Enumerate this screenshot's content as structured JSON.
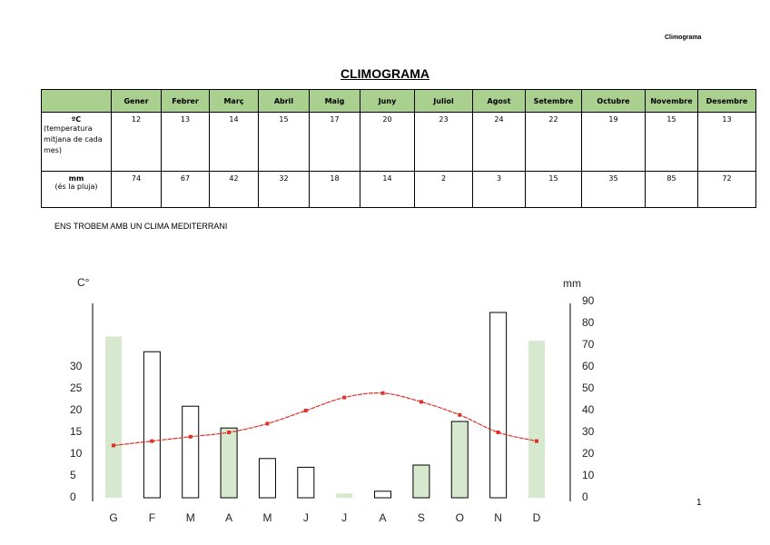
{
  "header": {
    "label": "Climograma"
  },
  "title": "CLIMOGRAMA",
  "table": {
    "columns": [
      "Gener",
      "Febrer",
      "Març",
      "Abril",
      "Maig",
      "Juny",
      "Juliol",
      "Agost",
      "Setembre",
      "Octubre",
      "Novembre",
      "Desembre"
    ],
    "rows": [
      {
        "label": "ºC",
        "sublabel": "(temperatura mitjana de cada mes)",
        "values": [
          12,
          13,
          14,
          15,
          17,
          20,
          23,
          24,
          22,
          19,
          15,
          13
        ]
      },
      {
        "label": "mm",
        "sublabel": "(és la pluja)",
        "values": [
          74,
          67,
          42,
          32,
          18,
          14,
          2,
          3,
          15,
          35,
          85,
          72
        ]
      }
    ]
  },
  "note": "ENS TROBEM AMB UN CLIMA MEDITERRANI",
  "page_number": "1",
  "chart_data": {
    "type": "climograph",
    "y_label": "C°",
    "y2_label": "mm",
    "categories": [
      "G",
      "F",
      "M",
      "A",
      "M",
      "J",
      "J",
      "A",
      "S",
      "O",
      "N",
      "D"
    ],
    "series": [
      {
        "type": "bar",
        "axis": "y2",
        "values": [
          74,
          67,
          42,
          32,
          18,
          14,
          2,
          3,
          15,
          35,
          85,
          72
        ],
        "colors": [
          "#d6e9cf",
          "#ffffff",
          "#ffffff",
          "#d6e9cf",
          "#ffffff",
          "#ffffff",
          "#d6e9cf",
          "#ffffff",
          "#d6e9cf",
          "#d6e9cf",
          "#ffffff",
          "#d6e9cf"
        ],
        "edge_colors": [
          "none",
          "#000000",
          "#000000",
          "#000000",
          "#000000",
          "#000000",
          "none",
          "#000000",
          "#000000",
          "#000000",
          "#000000",
          "none"
        ]
      },
      {
        "type": "line",
        "color": "#e0302a",
        "values": [
          12,
          13,
          14,
          15,
          17,
          20,
          23,
          24,
          22,
          19,
          15,
          13
        ]
      }
    ],
    "ylim": [
      0,
      45
    ],
    "yticks": [
      0,
      5,
      10,
      15,
      20,
      25,
      30
    ],
    "y2lim": [
      0,
      90
    ],
    "y2ticks": [
      0,
      10,
      20,
      30,
      40,
      50,
      60,
      70,
      80,
      90
    ]
  }
}
